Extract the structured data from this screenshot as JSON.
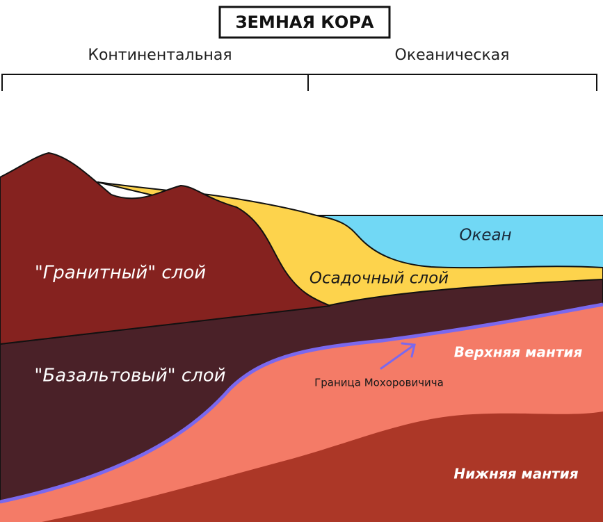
{
  "title": "ЗЕМНАЯ КОРА",
  "sections": [
    {
      "label": "Континентальная"
    },
    {
      "label": "Океаническая"
    }
  ],
  "layers": [
    {
      "label": "Океан"
    },
    {
      "label": "Осадочный слой"
    },
    {
      "label": "\"Гранитный\" слой"
    },
    {
      "label": "\"Базальтовый\" слой"
    },
    {
      "label": "Верхняя мантия"
    },
    {
      "label": "Нижняя мантия"
    }
  ],
  "annotation": {
    "label": "Граница Мохоровичича"
  }
}
